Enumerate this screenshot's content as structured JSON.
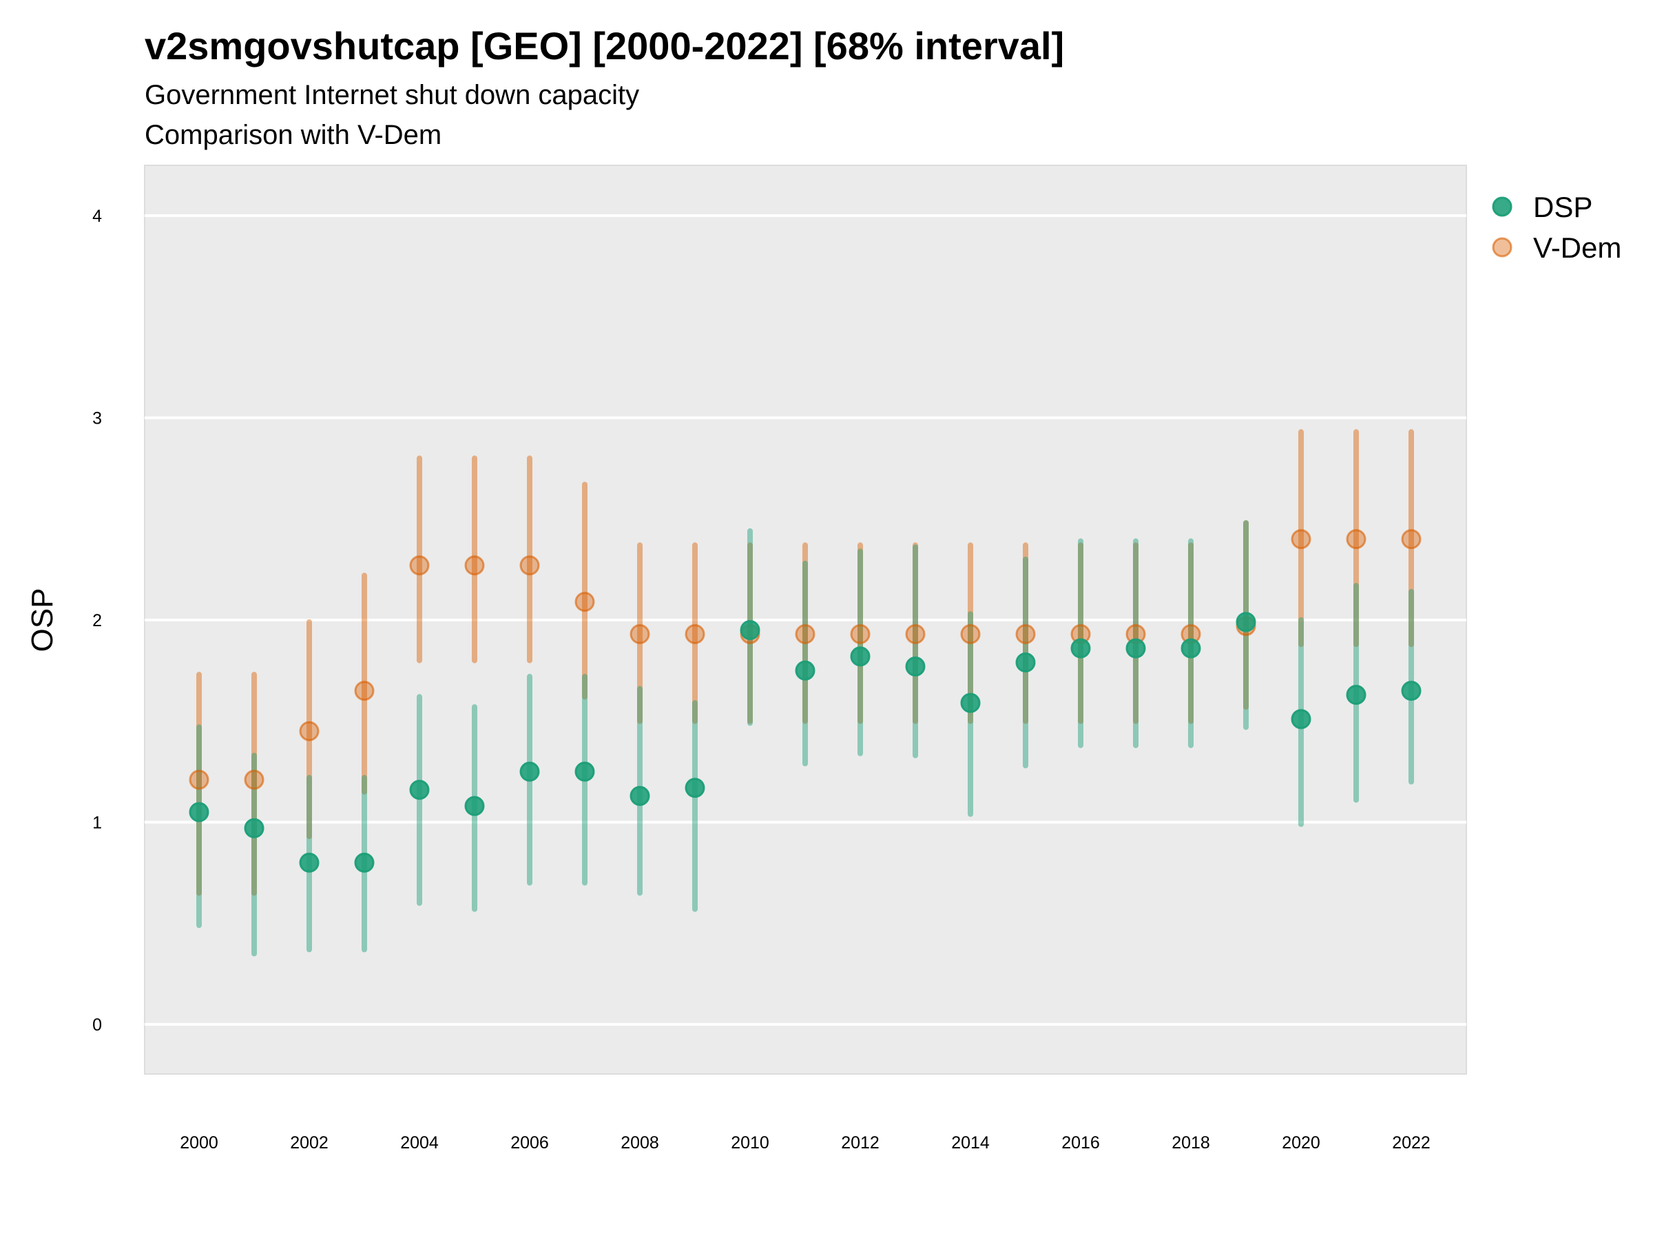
{
  "header": {
    "title": "v2smgovshutcap [GEO] [2000-2022] [68% interval]",
    "subtitle_line1": "Government Internet shut down capacity",
    "subtitle_line2": "Comparison with V-Dem"
  },
  "chart_data": {
    "type": "scatter",
    "title": "v2smgovshutcap [GEO] [2000-2022] [68% interval]",
    "subtitle": [
      "Government Internet shut down capacity",
      "Comparison with V-Dem"
    ],
    "xlabel": "",
    "ylabel": "OSP",
    "xlim": [
      1999,
      2023
    ],
    "ylim": [
      -0.25,
      4.3
    ],
    "x_ticks": [
      2000,
      2002,
      2004,
      2006,
      2008,
      2010,
      2012,
      2014,
      2016,
      2018,
      2020,
      2022
    ],
    "x_tick_labels": [
      "2000",
      "2002",
      "2004",
      "2006",
      "2008",
      "2010",
      "2012",
      "2014",
      "2016",
      "2018",
      "2020",
      "2022"
    ],
    "y_ticks": [
      0,
      1,
      2,
      3,
      4
    ],
    "y_tick_labels": [
      "0",
      "1",
      "2",
      "3",
      "4"
    ],
    "grid": true,
    "legend_position": "right",
    "x": [
      2000,
      2001,
      2002,
      2003,
      2004,
      2005,
      2006,
      2007,
      2008,
      2009,
      2010,
      2011,
      2012,
      2013,
      2014,
      2015,
      2016,
      2017,
      2018,
      2019,
      2020,
      2021,
      2022
    ],
    "series": [
      {
        "name": "DSP",
        "color": "#1b9e77",
        "values": [
          1.05,
          0.97,
          0.8,
          0.8,
          1.16,
          1.08,
          1.25,
          1.25,
          1.13,
          1.17,
          1.95,
          1.75,
          1.82,
          1.77,
          1.59,
          1.79,
          1.86,
          1.86,
          1.86,
          1.99,
          1.51,
          1.63,
          1.65
        ],
        "lower": [
          0.49,
          0.35,
          0.37,
          0.37,
          0.6,
          0.57,
          0.7,
          0.7,
          0.65,
          0.57,
          1.49,
          1.29,
          1.34,
          1.33,
          1.04,
          1.28,
          1.38,
          1.38,
          1.38,
          1.47,
          0.99,
          1.11,
          1.2
        ],
        "upper": [
          1.47,
          1.33,
          1.22,
          1.22,
          1.62,
          1.57,
          1.72,
          1.72,
          1.66,
          1.59,
          2.44,
          2.28,
          2.34,
          2.36,
          2.03,
          2.3,
          2.39,
          2.39,
          2.39,
          2.48,
          2.0,
          2.17,
          2.14
        ]
      },
      {
        "name": "V-Dem",
        "color": "#d95f02",
        "values": [
          1.21,
          1.21,
          1.45,
          1.65,
          2.27,
          2.27,
          2.27,
          2.09,
          1.93,
          1.93,
          1.93,
          1.93,
          1.93,
          1.93,
          1.93,
          1.93,
          1.93,
          1.93,
          1.93,
          1.97,
          2.4,
          2.4,
          2.4
        ],
        "lower": [
          0.65,
          0.65,
          0.93,
          1.15,
          1.8,
          1.8,
          1.8,
          1.62,
          1.5,
          1.5,
          1.5,
          1.5,
          1.5,
          1.5,
          1.5,
          1.5,
          1.5,
          1.5,
          1.5,
          1.57,
          1.88,
          1.88,
          1.88
        ],
        "upper": [
          1.73,
          1.73,
          1.99,
          2.22,
          2.8,
          2.8,
          2.8,
          2.67,
          2.37,
          2.37,
          2.37,
          2.37,
          2.37,
          2.37,
          2.37,
          2.37,
          2.37,
          2.37,
          2.37,
          2.48,
          2.93,
          2.93,
          2.93
        ]
      }
    ]
  },
  "legend": {
    "items": [
      {
        "label": "DSP",
        "color": "#1b9e77"
      },
      {
        "label": "V-Dem",
        "color": "#d95f02"
      }
    ]
  }
}
